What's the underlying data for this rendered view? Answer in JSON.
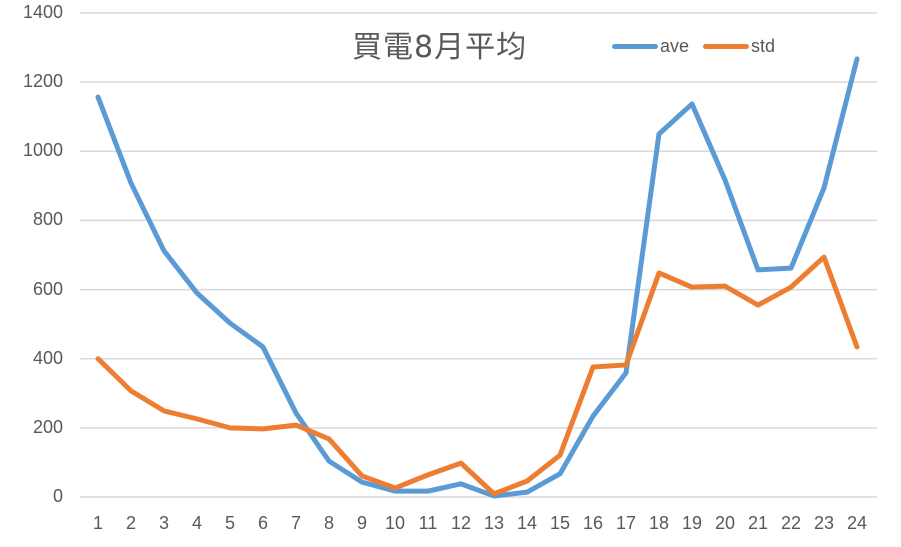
{
  "chart_data": {
    "type": "line",
    "title": "買電8月平均",
    "xlabel": "",
    "ylabel": "",
    "ylim": [
      0,
      1400
    ],
    "yticks": [
      0,
      200,
      400,
      600,
      800,
      1000,
      1200,
      1400
    ],
    "grid": true,
    "legend_position": "top-right",
    "categories": [
      "1",
      "2",
      "3",
      "4",
      "5",
      "6",
      "7",
      "8",
      "9",
      "10",
      "11",
      "12",
      "13",
      "14",
      "15",
      "16",
      "17",
      "18",
      "19",
      "20",
      "21",
      "22",
      "23",
      "24"
    ],
    "series": [
      {
        "name": "ave",
        "color": "#5B9BD5",
        "values": [
          1157,
          908,
          712,
          590,
          503,
          434,
          243,
          104,
          43,
          17,
          17,
          38,
          3,
          14,
          67,
          234,
          359,
          1050,
          1137,
          917,
          657,
          662,
          894,
          1267
        ]
      },
      {
        "name": "std",
        "color": "#ED7D31",
        "values": [
          400,
          307,
          249,
          226,
          200,
          197,
          208,
          168,
          61,
          26,
          64,
          98,
          9,
          46,
          121,
          376,
          382,
          648,
          607,
          610,
          555,
          607,
          694,
          434
        ]
      }
    ]
  },
  "colors": {
    "grid": "#D9D9D9",
    "text": "#595959"
  }
}
